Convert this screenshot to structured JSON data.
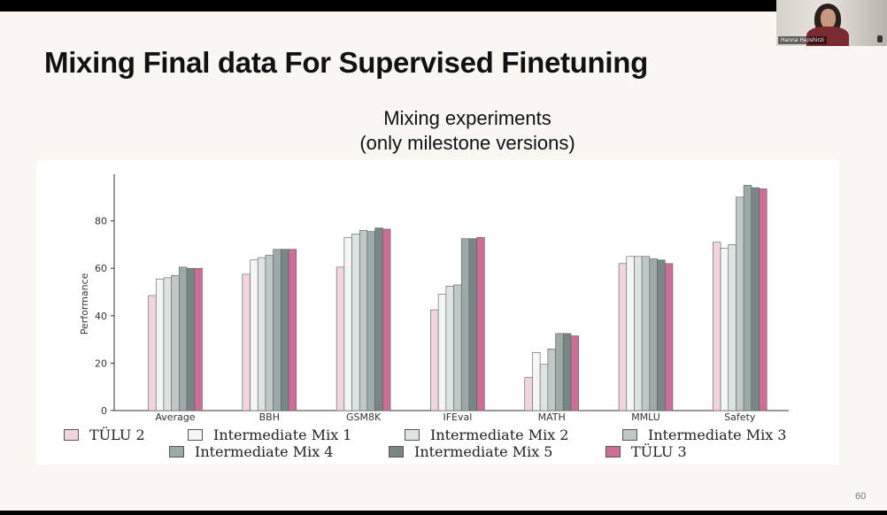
{
  "slide": {
    "title": "Mixing Final data For Supervised Finetuning",
    "page_number": "60"
  },
  "webcam": {
    "name": "Hanna Hajishirzi"
  },
  "chart_data": {
    "type": "bar",
    "title_lines": [
      "Mixing experiments",
      "(only milestone versions)"
    ],
    "ylabel": "Performance",
    "xlabel": "",
    "ylim": [
      0,
      100
    ],
    "yticks": [
      0,
      20,
      40,
      60,
      80
    ],
    "grid": false,
    "legend_position": "bottom",
    "categories": [
      "Average",
      "BBH",
      "GSM8K",
      "IFEval",
      "MATH",
      "MMLU",
      "Safety"
    ],
    "series": [
      {
        "name": "TÜLU 2",
        "color": "#f0d4df",
        "values": [
          48.5,
          57.5,
          60.5,
          42.5,
          14.0,
          62.0,
          71.0
        ]
      },
      {
        "name": "Intermediate Mix 1",
        "color": "#f4f5f5",
        "values": [
          55.5,
          63.5,
          73.0,
          49.0,
          24.5,
          65.0,
          68.5
        ]
      },
      {
        "name": "Intermediate Mix 2",
        "color": "#dde3e2",
        "values": [
          56.0,
          64.5,
          74.5,
          52.5,
          19.5,
          65.0,
          70.0
        ]
      },
      {
        "name": "Intermediate Mix 3",
        "color": "#bfc8c7",
        "values": [
          57.0,
          65.5,
          76.0,
          53.0,
          26.0,
          65.0,
          90.0
        ]
      },
      {
        "name": "Intermediate Mix 4",
        "color": "#9eaaaa",
        "values": [
          60.5,
          68.0,
          75.5,
          72.5,
          32.5,
          64.0,
          95.0
        ]
      },
      {
        "name": "Intermediate Mix 5",
        "color": "#798686",
        "values": [
          60.0,
          68.0,
          77.0,
          72.5,
          32.5,
          63.5,
          94.0
        ]
      },
      {
        "name": "TÜLU 3",
        "color": "#cc6f98",
        "values": [
          60.0,
          68.0,
          76.5,
          73.0,
          31.5,
          62.0,
          93.5
        ]
      }
    ]
  }
}
